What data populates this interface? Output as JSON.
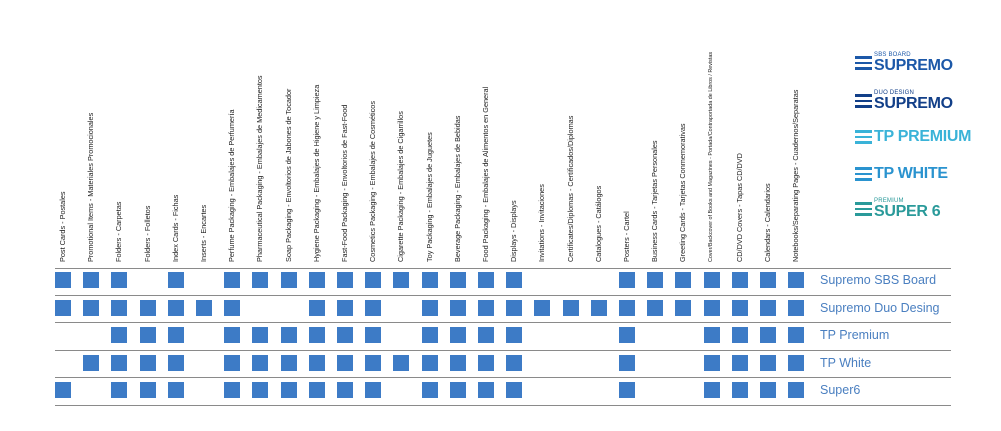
{
  "columns": [
    "Post Cards - Postales",
    "Promotional Items - Materiales Promocionales",
    "Folders - Carpetas",
    "Folders - Folletos",
    "Index Cards - Fichas",
    "Inserts - Encartes",
    "Perfume Packaging - Embalajes de Perfumería",
    "Pharmaceutical Packaging - Embalajes de Medicamentos",
    "Soap Packaging - Envoltorios de Jabones de Tocador",
    "Hygiene Packaging - Embalajes de Higiene y Limpieza",
    "Fast-Food Packaging - Envoltorios de Fast-Food",
    "Cosmetics Packaging - Embalajes de Cosméticos",
    "Cigarette Packaging - Embalajes de Cigarrillos",
    "Toy Packaging - Embalajes de Juguetes",
    "Beverage Packaging - Embalajes de Bebidas",
    "Food Packaging - Embalajes de Alimentos en General",
    "Displays - Displays",
    "Invitations - Invitaciones",
    "Certificates/Diplomas - Certificados/Diplomas",
    "Catalogues - Catálogos",
    "Posters - Cartel",
    "Business Cards - Tarjetas Personales",
    "Greeting Cards - Tarjetas Conmemorativas",
    "Cover/Backcover of Books and Magazines - Portada/Contraportada de Libros / Revistas",
    "CD/DVD Covers - Tapas CD/DVD",
    "Calendars - Calendarios",
    "Notebooks/Separating Pages - Cuadernos/Separatas"
  ],
  "rows": [
    {
      "label": "Supremo SBS Board",
      "marks": [
        1,
        1,
        1,
        0,
        1,
        0,
        1,
        1,
        1,
        1,
        1,
        1,
        1,
        1,
        1,
        1,
        1,
        0,
        0,
        0,
        1,
        1,
        1,
        1,
        1,
        1,
        1
      ]
    },
    {
      "label": "Supremo Duo Desing",
      "marks": [
        1,
        1,
        1,
        1,
        1,
        1,
        1,
        0,
        0,
        1,
        1,
        1,
        0,
        1,
        1,
        1,
        1,
        1,
        1,
        1,
        1,
        1,
        1,
        1,
        1,
        1,
        1
      ]
    },
    {
      "label": "TP Premium",
      "marks": [
        0,
        0,
        1,
        1,
        1,
        0,
        1,
        1,
        1,
        1,
        1,
        1,
        0,
        1,
        1,
        1,
        1,
        0,
        0,
        0,
        1,
        0,
        0,
        1,
        1,
        1,
        1
      ]
    },
    {
      "label": "TP White",
      "marks": [
        0,
        1,
        1,
        1,
        1,
        0,
        1,
        1,
        1,
        1,
        1,
        1,
        1,
        1,
        1,
        1,
        1,
        0,
        0,
        0,
        1,
        0,
        0,
        1,
        1,
        1,
        1
      ]
    },
    {
      "label": "Super6",
      "marks": [
        1,
        0,
        1,
        1,
        1,
        0,
        1,
        1,
        1,
        1,
        1,
        1,
        0,
        1,
        1,
        1,
        1,
        0,
        0,
        0,
        1,
        0,
        0,
        1,
        1,
        1,
        1
      ]
    }
  ],
  "brands": [
    {
      "small": "SBS BOARD",
      "big": "SUPREMO",
      "color": "#1c58a8"
    },
    {
      "small": "DUO DESIGN",
      "big": "SUPREMO",
      "color": "#123f88"
    },
    {
      "small": "",
      "big": "TP PREMIUM",
      "color": "#3ab3d8"
    },
    {
      "small": "",
      "big": "TP WHITE",
      "color": "#2a93cf"
    },
    {
      "small": "PREMIUM",
      "big": "SUPER 6",
      "color": "#2a9a9a"
    }
  ],
  "colors": {
    "mark": "#3d7bc6",
    "row_label": "#4a7fc0",
    "rule": "#8a8a8a"
  }
}
